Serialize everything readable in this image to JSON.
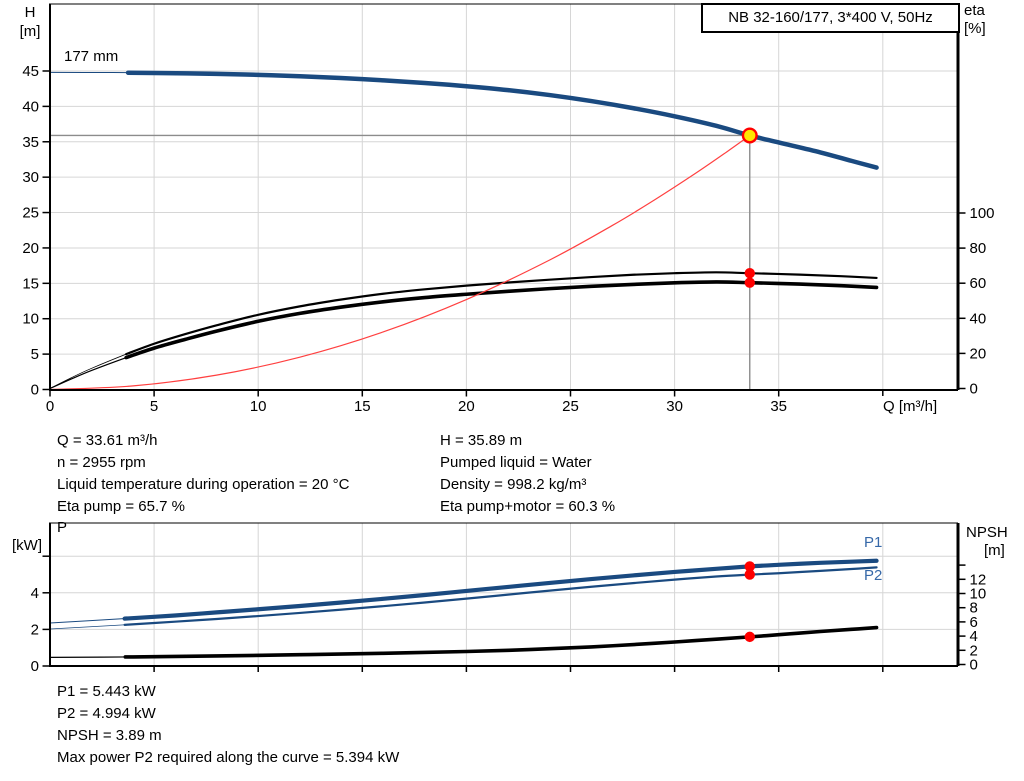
{
  "title_box": "NB 32-160/177, 3*400 V, 50Hz",
  "axis_labels": {
    "h": "H",
    "h_unit": "[m]",
    "eta": "eta",
    "eta_unit": "[%]",
    "q": "Q [m³/h]",
    "p": "P",
    "p_unit": "[kW]",
    "npsh": "NPSH",
    "npsh_unit": "[m]"
  },
  "impeller_label": "177 mm",
  "curve_labels": {
    "p1": "P1",
    "p2": "P2"
  },
  "info_top_left": [
    "Q = 33.61 m³/h",
    "n = 2955 rpm",
    "Liquid temperature during operation = 20 °C",
    "Eta pump = 65.7 %"
  ],
  "info_top_right": [
    "H = 35.89 m",
    "Pumped liquid = Water",
    "Density = 998.2 kg/m³",
    "Eta pump+motor = 60.3 %"
  ],
  "info_bottom": [
    "P1 = 5.443 kW",
    "P2 = 4.994 kW",
    "NPSH = 3.89 m",
    "Max power P2 required along the curve = 5.394 kW"
  ],
  "colors": {
    "curve_blue": "#1a4a80",
    "label_blue": "#3668a8",
    "black": "#000000",
    "system_red": "#ff4040",
    "marker_red": "#ff0000",
    "duty_yellow": "#ffe600",
    "grid_gray": "#d6d6d6",
    "duty_line_gray": "#8c8c8c"
  },
  "chart_data": [
    {
      "type": "line",
      "title": "NB 32-160/177, 3*400 V, 50Hz",
      "xlabel": "Q [m³/h]",
      "ylabel_left": "H [m]",
      "ylabel_right": "eta [%]",
      "xlim": [
        0,
        43.6
      ],
      "ylim_left": [
        0,
        54.5
      ],
      "ylim_right": [
        0,
        220
      ],
      "grid": true,
      "x_ticks": [
        0,
        5,
        10,
        15,
        20,
        25,
        30,
        35
      ],
      "x_ticks_unlabeled": [
        40
      ],
      "y_ticks_left": [
        0,
        5,
        10,
        15,
        20,
        25,
        30,
        35,
        40,
        45
      ],
      "y_ticks_right": [
        0,
        20,
        40,
        60,
        80,
        100
      ],
      "series": [
        {
          "name": "head",
          "label": "177 mm",
          "axis": "left",
          "color": "#1a4a80",
          "thick_from_q": 3.75,
          "points": [
            [
              0,
              44.8
            ],
            [
              3,
              44.78
            ],
            [
              5,
              44.72
            ],
            [
              8,
              44.6
            ],
            [
              10,
              44.45
            ],
            [
              12,
              44.25
            ],
            [
              15,
              43.85
            ],
            [
              18,
              43.3
            ],
            [
              20,
              42.85
            ],
            [
              22,
              42.3
            ],
            [
              24,
              41.6
            ],
            [
              26,
              40.75
            ],
            [
              28,
              39.75
            ],
            [
              30,
              38.6
            ],
            [
              32,
              37.25
            ],
            [
              33.61,
              35.89
            ],
            [
              35,
              34.9
            ],
            [
              37,
              33.5
            ],
            [
              38.5,
              32.3
            ],
            [
              39.7,
              31.35
            ]
          ]
        },
        {
          "name": "eta_pump",
          "label": "Eta pump",
          "axis": "right",
          "color": "#000000",
          "thick_from_q": 3.75,
          "points": [
            [
              0,
              0
            ],
            [
              1,
              6
            ],
            [
              2,
              11.5
            ],
            [
              3.75,
              20
            ],
            [
              5,
              25.5
            ],
            [
              6.5,
              31
            ],
            [
              8,
              36
            ],
            [
              10,
              42
            ],
            [
              12,
              46.8
            ],
            [
              14,
              50.7
            ],
            [
              16,
              54
            ],
            [
              18,
              56.5
            ],
            [
              20,
              58.6
            ],
            [
              22,
              60.4
            ],
            [
              24,
              62
            ],
            [
              26,
              63.5
            ],
            [
              28,
              64.8
            ],
            [
              30,
              65.7
            ],
            [
              32,
              66.2
            ],
            [
              33.61,
              65.7
            ],
            [
              36,
              64.9
            ],
            [
              38,
              64.0
            ],
            [
              39.7,
              63.0
            ]
          ]
        },
        {
          "name": "eta_pump_motor",
          "label": "Eta pump+motor",
          "axis": "right",
          "color": "#000000",
          "thick_from_q": 3.75,
          "points": [
            [
              0,
              0
            ],
            [
              1,
              5.3
            ],
            [
              2,
              10.3
            ],
            [
              3.75,
              18
            ],
            [
              5,
              23
            ],
            [
              6.5,
              28
            ],
            [
              8,
              32.7
            ],
            [
              10,
              38.3
            ],
            [
              12,
              42.8
            ],
            [
              14,
              46.4
            ],
            [
              16,
              49.4
            ],
            [
              18,
              51.8
            ],
            [
              20,
              53.7
            ],
            [
              22,
              55.4
            ],
            [
              24,
              56.9
            ],
            [
              26,
              58.2
            ],
            [
              28,
              59.3
            ],
            [
              30,
              60.2
            ],
            [
              32,
              60.7
            ],
            [
              33.61,
              60.3
            ],
            [
              36,
              59.5
            ],
            [
              38,
              58.6
            ],
            [
              39.7,
              57.6
            ]
          ]
        },
        {
          "name": "system",
          "label": "System curve",
          "axis": "left",
          "color": "#ff4040",
          "points": [
            [
              0,
              0
            ],
            [
              4,
              0.51
            ],
            [
              8,
              2.03
            ],
            [
              12,
              4.57
            ],
            [
              16,
              8.13
            ],
            [
              20,
              12.71
            ],
            [
              24,
              18.3
            ],
            [
              27,
              23.16
            ],
            [
              29,
              26.72
            ],
            [
              31,
              30.53
            ],
            [
              32.5,
              33.56
            ],
            [
              33.61,
              35.89
            ]
          ]
        }
      ],
      "duty_point": {
        "q": 33.61,
        "h": 35.89
      },
      "markers": [
        {
          "q": 33.61,
          "value": 65.7,
          "axis": "right"
        },
        {
          "q": 33.61,
          "value": 60.3,
          "axis": "right"
        }
      ]
    },
    {
      "type": "line",
      "xlabel": "",
      "ylabel_left": "P [kW]",
      "ylabel_right": "NPSH [m]",
      "xlim": [
        0,
        43.6
      ],
      "ylim_left": [
        0,
        7.8
      ],
      "ylim_right": [
        0,
        20
      ],
      "grid": true,
      "x_ticks": [],
      "x_ticks_unlabeled": [
        5,
        10,
        15,
        20,
        25,
        30,
        35,
        40
      ],
      "y_ticks_left": [
        0,
        2,
        4
      ],
      "y_ticks_left_unlabeled": [
        6
      ],
      "y_ticks_right": [
        0,
        2,
        4,
        6,
        8,
        10,
        12
      ],
      "y_ticks_right_unlabeled": [
        14
      ],
      "series": [
        {
          "name": "p1",
          "label": "P1",
          "axis": "left",
          "color": "#1a4a80",
          "thick_from_q": 3.75,
          "points": [
            [
              0,
              2.35
            ],
            [
              3.75,
              2.6
            ],
            [
              6,
              2.76
            ],
            [
              8,
              2.93
            ],
            [
              10,
              3.1
            ],
            [
              12,
              3.28
            ],
            [
              14,
              3.47
            ],
            [
              16,
              3.67
            ],
            [
              18,
              3.88
            ],
            [
              20,
              4.1
            ],
            [
              22,
              4.32
            ],
            [
              24,
              4.54
            ],
            [
              26,
              4.75
            ],
            [
              28,
              4.95
            ],
            [
              30,
              5.14
            ],
            [
              32,
              5.31
            ],
            [
              33.61,
              5.443
            ],
            [
              35,
              5.53
            ],
            [
              37,
              5.64
            ],
            [
              38.5,
              5.7
            ],
            [
              39.7,
              5.75
            ]
          ]
        },
        {
          "name": "p2",
          "label": "P2",
          "axis": "left",
          "color": "#1a4a80",
          "thick_from_q": 3.75,
          "points": [
            [
              0,
              2.02
            ],
            [
              3.75,
              2.26
            ],
            [
              6,
              2.42
            ],
            [
              8,
              2.57
            ],
            [
              10,
              2.73
            ],
            [
              12,
              2.9
            ],
            [
              14,
              3.08
            ],
            [
              16,
              3.27
            ],
            [
              18,
              3.47
            ],
            [
              20,
              3.68
            ],
            [
              22,
              3.9
            ],
            [
              24,
              4.12
            ],
            [
              26,
              4.33
            ],
            [
              28,
              4.53
            ],
            [
              30,
              4.72
            ],
            [
              32,
              4.89
            ],
            [
              33.61,
              4.994
            ],
            [
              35,
              5.07
            ],
            [
              37,
              5.2
            ],
            [
              38.5,
              5.3
            ],
            [
              39.7,
              5.39
            ]
          ]
        },
        {
          "name": "npsh",
          "label": "NPSH",
          "axis": "right",
          "color": "#000000",
          "thick_from_q": 3.75,
          "points": [
            [
              0,
              1.0
            ],
            [
              4,
              1.07
            ],
            [
              8,
              1.2
            ],
            [
              12,
              1.38
            ],
            [
              16,
              1.58
            ],
            [
              20,
              1.83
            ],
            [
              23,
              2.1
            ],
            [
              26,
              2.48
            ],
            [
              29,
              2.98
            ],
            [
              31,
              3.37
            ],
            [
              33.61,
              3.89
            ],
            [
              35,
              4.2
            ],
            [
              37,
              4.65
            ],
            [
              38.5,
              4.95
            ],
            [
              39.7,
              5.2
            ]
          ]
        }
      ],
      "markers": [
        {
          "q": 33.61,
          "value": 5.443,
          "axis": "left"
        },
        {
          "q": 33.61,
          "value": 4.994,
          "axis": "left"
        },
        {
          "q": 33.61,
          "value": 3.89,
          "axis": "right"
        }
      ]
    }
  ]
}
